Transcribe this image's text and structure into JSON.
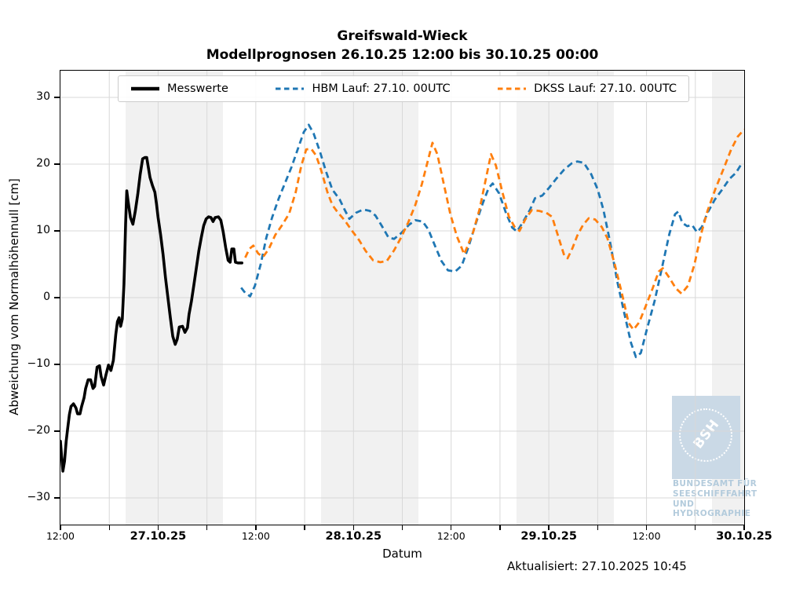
{
  "title": {
    "line1": "Greifswald-Wieck",
    "line2": "Modellprognosen 26.10.25 12:00 bis 30.10.25 00:00"
  },
  "legend": {
    "items": [
      {
        "id": "messwerte",
        "label": "Messwerte",
        "color": "#000000",
        "style": "solid"
      },
      {
        "id": "hbm",
        "label": "HBM Lauf: 27.10. 00UTC",
        "color": "#1f77b4",
        "style": "dashed"
      },
      {
        "id": "dkss",
        "label": "DKSS Lauf: 27.10. 00UTC",
        "color": "#ff7f0e",
        "style": "dashed"
      }
    ]
  },
  "axes": {
    "ylabel": "Abweichung vom Normalhöhennull [cm]",
    "xlabel": "Datum",
    "y_ticks": [
      {
        "value": 30,
        "label": "30"
      },
      {
        "value": 20,
        "label": "20"
      },
      {
        "value": 10,
        "label": "10"
      },
      {
        "value": 0,
        "label": "0"
      },
      {
        "value": -10,
        "label": "−10"
      },
      {
        "value": -20,
        "label": "−20"
      },
      {
        "value": -30,
        "label": "−30"
      }
    ],
    "x_ticks": [
      {
        "t": 0,
        "label": "12:00",
        "bold": false
      },
      {
        "t": 12,
        "label": "27.10.25",
        "bold": true
      },
      {
        "t": 24,
        "label": "12:00",
        "bold": false
      },
      {
        "t": 36,
        "label": "28.10.25",
        "bold": true
      },
      {
        "t": 48,
        "label": "12:00",
        "bold": false
      },
      {
        "t": 60,
        "label": "29.10.25",
        "bold": true
      },
      {
        "t": 72,
        "label": "12:00",
        "bold": false
      },
      {
        "t": 84,
        "label": "30.10.25",
        "bold": true
      }
    ],
    "minor_tick_hours": 6
  },
  "footer": {
    "updated": "Aktualisiert: 27.10.2025 10:45"
  },
  "watermark": {
    "abbr": "BSH",
    "lines": [
      "BUNDESAMT FÜR",
      "SEESCHIFFFAHRT",
      "UND",
      "HYDROGRAPHIE"
    ]
  },
  "colors": {
    "messwerte": "#000000",
    "hbm": "#1f77b4",
    "dkss": "#ff7f0e",
    "band": "rgba(0,0,0,0.055)",
    "grid": "#d8d8d8",
    "watermark_square": "#cad9e6",
    "watermark_text": "#b3cbdc"
  },
  "chart_data": {
    "type": "line",
    "title": "Greifswald-Wieck — Modellprognosen 26.10.25 12:00 bis 30.10.25 00:00",
    "xlabel": "Datum",
    "ylabel": "Abweichung vom Normalhöhennull [cm]",
    "x_unit": "hours since 26.10.2025 12:00",
    "xlim": [
      0,
      84
    ],
    "ylim": [
      -34,
      34
    ],
    "grid": true,
    "legend_position": "top",
    "night_bands": [
      [
        8,
        20
      ],
      [
        32,
        44
      ],
      [
        56,
        68
      ],
      [
        80,
        84
      ]
    ],
    "series": [
      {
        "id": "messwerte",
        "name": "Messwerte",
        "color": "#000000",
        "dash": "solid",
        "line_width": 3.6,
        "points": [
          [
            0.0,
            -21.5
          ],
          [
            0.15,
            -24
          ],
          [
            0.3,
            -26
          ],
          [
            0.5,
            -24.5
          ],
          [
            0.7,
            -21.5
          ],
          [
            0.9,
            -19.5
          ],
          [
            1.1,
            -17.5
          ],
          [
            1.3,
            -16.3
          ],
          [
            1.6,
            -15.9
          ],
          [
            1.9,
            -16.5
          ],
          [
            2.1,
            -17.4
          ],
          [
            2.4,
            -17.4
          ],
          [
            2.6,
            -16.3
          ],
          [
            2.9,
            -15
          ],
          [
            3.1,
            -13.6
          ],
          [
            3.4,
            -12.3
          ],
          [
            3.7,
            -12.3
          ],
          [
            4.0,
            -13.6
          ],
          [
            4.2,
            -13.3
          ],
          [
            4.5,
            -10.4
          ],
          [
            4.8,
            -10.2
          ],
          [
            5.0,
            -11.8
          ],
          [
            5.3,
            -13.1
          ],
          [
            5.6,
            -11.5
          ],
          [
            5.9,
            -10.1
          ],
          [
            6.2,
            -10.9
          ],
          [
            6.5,
            -9.4
          ],
          [
            6.8,
            -5.5
          ],
          [
            7.0,
            -3.6
          ],
          [
            7.2,
            -3.0
          ],
          [
            7.4,
            -4.3
          ],
          [
            7.6,
            -3.2
          ],
          [
            7.8,
            2
          ],
          [
            8.0,
            11
          ],
          [
            8.15,
            16
          ],
          [
            8.3,
            14.5
          ],
          [
            8.6,
            12
          ],
          [
            8.9,
            11
          ],
          [
            9.2,
            13
          ],
          [
            9.5,
            15.5
          ],
          [
            9.8,
            18.5
          ],
          [
            10.1,
            20.8
          ],
          [
            10.4,
            21
          ],
          [
            10.6,
            21
          ],
          [
            10.8,
            19.5
          ],
          [
            11.0,
            18
          ],
          [
            11.3,
            16.8
          ],
          [
            11.6,
            15.8
          ],
          [
            11.8,
            14
          ],
          [
            12.0,
            12
          ],
          [
            12.3,
            9.5
          ],
          [
            12.6,
            6.5
          ],
          [
            12.9,
            3
          ],
          [
            13.2,
            0
          ],
          [
            13.5,
            -3
          ],
          [
            13.8,
            -5.8
          ],
          [
            14.1,
            -7
          ],
          [
            14.35,
            -6.2
          ],
          [
            14.6,
            -4.4
          ],
          [
            15.0,
            -4.3
          ],
          [
            15.3,
            -5.2
          ],
          [
            15.6,
            -4.5
          ],
          [
            15.8,
            -2.5
          ],
          [
            16.1,
            -0.5
          ],
          [
            16.4,
            2
          ],
          [
            16.7,
            4.5
          ],
          [
            17.0,
            7
          ],
          [
            17.3,
            9
          ],
          [
            17.6,
            10.8
          ],
          [
            17.9,
            11.8
          ],
          [
            18.2,
            12.1
          ],
          [
            18.5,
            12.0
          ],
          [
            18.75,
            11.4
          ],
          [
            19.0,
            12.0
          ],
          [
            19.4,
            12.1
          ],
          [
            19.7,
            11.6
          ],
          [
            20.0,
            9.8
          ],
          [
            20.3,
            7.5
          ],
          [
            20.6,
            5.6
          ],
          [
            20.85,
            5.3
          ],
          [
            21.05,
            7.3
          ],
          [
            21.3,
            7.3
          ],
          [
            21.5,
            5.3
          ],
          [
            21.8,
            5.2
          ],
          [
            22.3,
            5.2
          ]
        ]
      },
      {
        "id": "hbm",
        "name": "HBM Lauf: 27.10. 00UTC",
        "color": "#1f77b4",
        "dash": "dashed",
        "line_width": 2.8,
        "points": [
          [
            22.2,
            1.5
          ],
          [
            22.7,
            0.7
          ],
          [
            23.3,
            0.2
          ],
          [
            23.9,
            1.8
          ],
          [
            24.6,
            5
          ],
          [
            25.3,
            9
          ],
          [
            26.0,
            12
          ],
          [
            26.8,
            14.8
          ],
          [
            27.6,
            17.2
          ],
          [
            28.4,
            19.6
          ],
          [
            29.2,
            22.4
          ],
          [
            29.9,
            24.8
          ],
          [
            30.5,
            25.9
          ],
          [
            31.1,
            24.6
          ],
          [
            31.9,
            21.8
          ],
          [
            32.6,
            19
          ],
          [
            33.4,
            16.2
          ],
          [
            34.3,
            14.7
          ],
          [
            34.9,
            13.2
          ],
          [
            35.5,
            11.8
          ],
          [
            36.3,
            12.7
          ],
          [
            37.2,
            13.2
          ],
          [
            38.0,
            13.0
          ],
          [
            38.7,
            12.3
          ],
          [
            39.5,
            10.7
          ],
          [
            40.3,
            9.0
          ],
          [
            41.0,
            8.8
          ],
          [
            41.9,
            9.7
          ],
          [
            42.8,
            10.9
          ],
          [
            43.6,
            11.6
          ],
          [
            44.5,
            11.4
          ],
          [
            45.2,
            10.2
          ],
          [
            46.0,
            7.8
          ],
          [
            46.8,
            5.5
          ],
          [
            47.6,
            4.1
          ],
          [
            48.5,
            3.9
          ],
          [
            49.3,
            4.8
          ],
          [
            50.1,
            7.5
          ],
          [
            51.0,
            11
          ],
          [
            51.9,
            14.2
          ],
          [
            52.6,
            16.4
          ],
          [
            53.1,
            17.1
          ],
          [
            53.9,
            15.6
          ],
          [
            54.7,
            12.8
          ],
          [
            55.5,
            10.5
          ],
          [
            56.1,
            9.9
          ],
          [
            56.9,
            11.5
          ],
          [
            57.7,
            13.2
          ],
          [
            58.3,
            14.9
          ],
          [
            59.2,
            15.3
          ],
          [
            60.0,
            16.4
          ],
          [
            60.9,
            17.8
          ],
          [
            61.9,
            19.2
          ],
          [
            62.8,
            20.1
          ],
          [
            63.5,
            20.4
          ],
          [
            64.3,
            20.2
          ],
          [
            65.2,
            18.5
          ],
          [
            66.0,
            16.2
          ],
          [
            66.7,
            13.2
          ],
          [
            67.5,
            8.5
          ],
          [
            68.4,
            2.5
          ],
          [
            69.3,
            -2.5
          ],
          [
            70.1,
            -6.8
          ],
          [
            70.7,
            -8.9
          ],
          [
            71.3,
            -8.3
          ],
          [
            72.1,
            -4.5
          ],
          [
            73.0,
            -0.5
          ],
          [
            73.9,
            4.5
          ],
          [
            74.8,
            9.5
          ],
          [
            75.5,
            12.5
          ],
          [
            75.9,
            12.9
          ],
          [
            76.4,
            11.2
          ],
          [
            77.0,
            10.7
          ],
          [
            77.6,
            10.9
          ],
          [
            78.2,
            9.8
          ],
          [
            78.8,
            10.6
          ],
          [
            79.5,
            12.7
          ],
          [
            80.4,
            14.7
          ],
          [
            81.3,
            16.2
          ],
          [
            82.2,
            17.8
          ],
          [
            83.0,
            18.7
          ],
          [
            83.7,
            20.1
          ]
        ]
      },
      {
        "id": "dkss",
        "name": "DKSS Lauf: 27.10. 00UTC",
        "color": "#ff7f0e",
        "dash": "dashed",
        "line_width": 2.8,
        "points": [
          [
            22.7,
            6.0
          ],
          [
            23.2,
            7.3
          ],
          [
            23.7,
            7.8
          ],
          [
            24.3,
            6.6
          ],
          [
            24.9,
            6.1
          ],
          [
            25.6,
            7.3
          ],
          [
            26.4,
            9.4
          ],
          [
            27.2,
            10.8
          ],
          [
            28.1,
            12.6
          ],
          [
            28.9,
            15.8
          ],
          [
            29.6,
            19.8
          ],
          [
            30.2,
            22.2
          ],
          [
            30.8,
            22.3
          ],
          [
            31.4,
            21.3
          ],
          [
            32.0,
            19.2
          ],
          [
            32.8,
            15.8
          ],
          [
            33.4,
            13.9
          ],
          [
            34.0,
            12.9
          ],
          [
            34.9,
            11.6
          ],
          [
            35.9,
            9.9
          ],
          [
            36.7,
            8.6
          ],
          [
            37.5,
            7.0
          ],
          [
            38.4,
            5.6
          ],
          [
            39.3,
            5.3
          ],
          [
            40.1,
            5.5
          ],
          [
            41.0,
            7.1
          ],
          [
            41.8,
            8.9
          ],
          [
            42.7,
            11.2
          ],
          [
            43.6,
            13.9
          ],
          [
            44.4,
            17.0
          ],
          [
            45.1,
            20.3
          ],
          [
            45.7,
            23.2
          ],
          [
            46.3,
            21.5
          ],
          [
            47.1,
            17
          ],
          [
            47.9,
            12.5
          ],
          [
            48.7,
            9.2
          ],
          [
            49.2,
            7.7
          ],
          [
            49.6,
            6.5
          ],
          [
            50.0,
            7.7
          ],
          [
            50.7,
            9.8
          ],
          [
            51.5,
            13.3
          ],
          [
            52.3,
            18
          ],
          [
            52.9,
            21.5
          ],
          [
            53.5,
            19.8
          ],
          [
            54.3,
            15.8
          ],
          [
            55.1,
            12.1
          ],
          [
            55.8,
            10.6
          ],
          [
            56.4,
            10.0
          ],
          [
            57.1,
            11.7
          ],
          [
            57.9,
            13.1
          ],
          [
            58.8,
            13.0
          ],
          [
            59.7,
            12.7
          ],
          [
            60.4,
            12.1
          ],
          [
            61.1,
            9.4
          ],
          [
            61.9,
            6.3
          ],
          [
            62.3,
            5.9
          ],
          [
            62.9,
            7.4
          ],
          [
            63.5,
            9.3
          ],
          [
            64.2,
            10.9
          ],
          [
            64.9,
            11.9
          ],
          [
            65.7,
            11.7
          ],
          [
            66.5,
            10.6
          ],
          [
            67.2,
            8.9
          ],
          [
            68.1,
            5
          ],
          [
            69.0,
            0.5
          ],
          [
            69.8,
            -3.8
          ],
          [
            70.4,
            -4.8
          ],
          [
            71.1,
            -3.7
          ],
          [
            71.9,
            -1.3
          ],
          [
            72.7,
            1.2
          ],
          [
            73.5,
            3.9
          ],
          [
            74.0,
            4.4
          ],
          [
            74.8,
            3.0
          ],
          [
            75.6,
            1.4
          ],
          [
            76.3,
            0.6
          ],
          [
            77.1,
            1.8
          ],
          [
            77.9,
            5.0
          ],
          [
            78.7,
            9.5
          ],
          [
            79.5,
            13.0
          ],
          [
            80.5,
            16.4
          ],
          [
            81.5,
            19.4
          ],
          [
            82.4,
            22.2
          ],
          [
            83.2,
            24.1
          ],
          [
            84.0,
            25.2
          ]
        ]
      }
    ]
  }
}
